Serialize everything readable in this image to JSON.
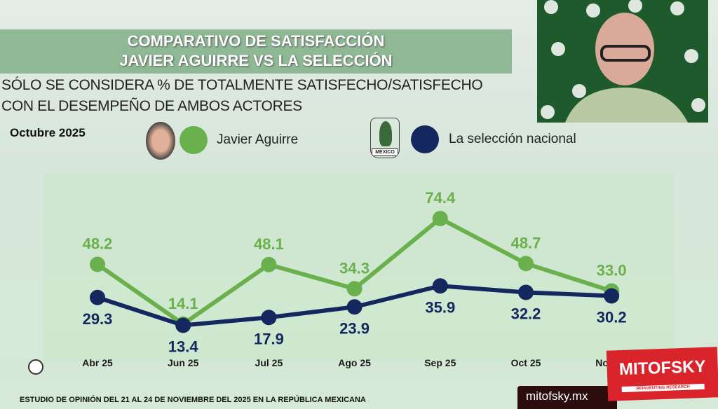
{
  "header": {
    "title_line1": "COMPARATIVO DE SATISFACCIÓN",
    "title_line2": "JAVIER AGUIRRE VS LA SELECCIÓN",
    "subtitle_line1": "SÓLO SE CONSIDERA % DE TOTALMENTE SATISFECHO/SATISFECHO",
    "subtitle_line2": "CON EL DESEMPEÑO DE AMBOS ACTORES",
    "period": "Octubre 2025"
  },
  "footer": {
    "note": "ESTUDIO DE OPINIÓN DEL 21 AL 24 DE NOVIEMBRE DEL 2025 EN LA REPÚBLICA MEXICANA",
    "website": "mitofsky.mx",
    "logo": "MITOFSKY",
    "logo_tagline": "REINVENTING RESEARCH",
    "crest_text": "MÉXICO"
  },
  "chart_data": {
    "type": "line",
    "categories": [
      "Abr 25",
      "Jun 25",
      "Jul 25",
      "Ago 25",
      "Sep 25",
      "Oct 25",
      "Nov 25"
    ],
    "series": [
      {
        "name": "Javier Aguirre",
        "color": "#6ab04c",
        "values": [
          48.2,
          14.1,
          48.1,
          34.3,
          74.4,
          48.7,
          33.0
        ]
      },
      {
        "name": "La selección nacional",
        "color": "#14285f",
        "values": [
          29.3,
          13.4,
          17.9,
          23.9,
          35.9,
          32.2,
          30.2
        ]
      }
    ],
    "grid": false,
    "legend": "top"
  }
}
